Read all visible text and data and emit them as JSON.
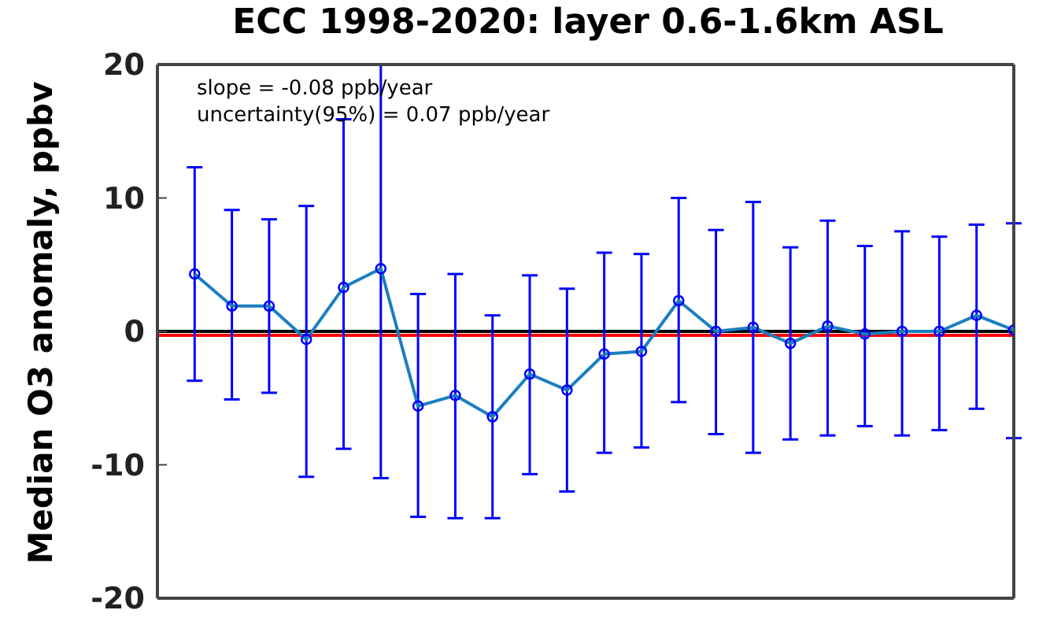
{
  "chart_data": {
    "type": "line",
    "title": "ECC 1998-2020: layer 0.6-1.6km ASL",
    "ylabel": "Median O3 anomaly, ppbv",
    "annotations": [
      "slope = -0.08 ppb/year",
      "uncertainty(95%) = 0.07 ppb/year"
    ],
    "categories": [
      null,
      null,
      null,
      null,
      null,
      null,
      null,
      null,
      null,
      null,
      null,
      null,
      null,
      null,
      null,
      null,
      null,
      null,
      null,
      null,
      null,
      null,
      null
    ],
    "ylim": [
      -20,
      20
    ],
    "yticks": [
      -20,
      -10,
      0,
      10,
      20
    ],
    "legend": false,
    "marker": "circle",
    "line_style": "solid",
    "series": [
      {
        "color": "#1a7fc0",
        "values": [
          4.3,
          1.9,
          1.9,
          -0.6,
          3.3,
          4.7,
          -5.6,
          -4.8,
          -6.4,
          -3.2,
          -4.4,
          -1.7,
          -1.5,
          2.3,
          0,
          0.3,
          -0.9,
          0.4,
          -0.2,
          0,
          0,
          1.2,
          0.1
        ],
        "errors": [
          [
            -3.7,
            12.3
          ],
          [
            -5.1,
            9.1
          ],
          [
            -4.6,
            8.4
          ],
          [
            -10.9,
            9.4
          ],
          [
            -8.8,
            15.9
          ],
          [
            -11,
            20
          ],
          [
            -13.9,
            2.8
          ],
          [
            -14,
            4.3
          ],
          [
            -14,
            1.2
          ],
          [
            -10.7,
            4.2
          ],
          [
            -12,
            3.2
          ],
          [
            -9.1,
            5.9
          ],
          [
            -8.7,
            5.8
          ],
          [
            -5.3,
            10
          ],
          [
            -7.7,
            7.6
          ],
          [
            -9.1,
            9.7
          ],
          [
            -8.1,
            6.3
          ],
          [
            -7.8,
            8.3
          ],
          [
            -7.1,
            6.4
          ],
          [
            -7.8,
            7.5
          ],
          [
            -7.4,
            7.1
          ],
          [
            -5.8,
            8
          ],
          [
            -8,
            8.1
          ]
        ]
      }
    ],
    "ref_lines": [
      {
        "axis": "y",
        "value": 0,
        "color": "#000000"
      },
      {
        "axis": "y",
        "value": -0.3,
        "color": "#ff0000"
      }
    ]
  }
}
